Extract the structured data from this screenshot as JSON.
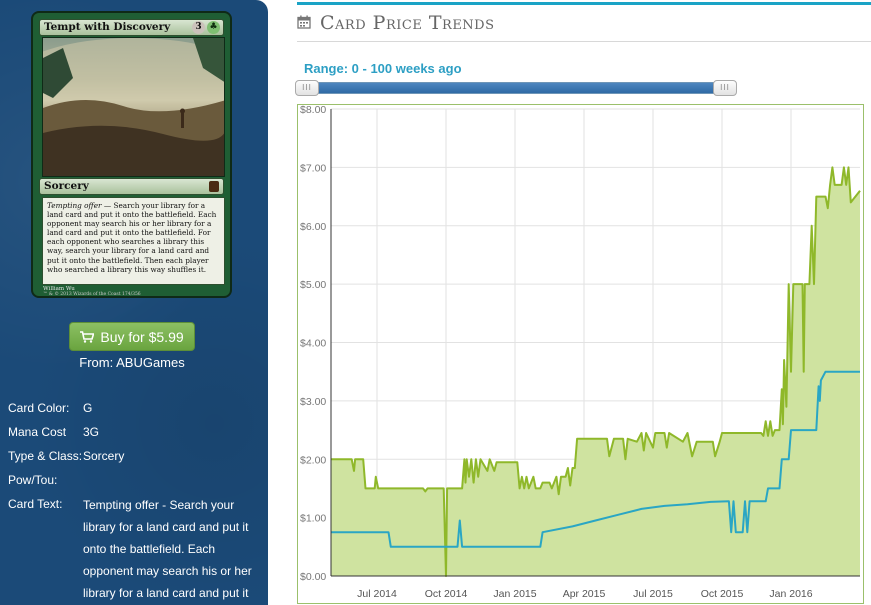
{
  "card": {
    "name": "Tempt with Discovery",
    "mana_symbols": [
      "3",
      "G"
    ],
    "type_line": "Sorcery",
    "rules_text_italic": "Tempting offer",
    "rules_text": " — Search your library for a land card and put it onto the battlefield. Each opponent may search his or her library for a land card and put it onto the battlefield. For each opponent who searches a library this way, search your library for a land card and put it onto the battlefield. Then each player who searched a library this way shuffles it.",
    "artist": "William Wu",
    "copyright": "™ & © 2013 Wizards of the Coast 174/356"
  },
  "buy": {
    "button_label": "Buy for $5.99",
    "from_text": "From: ABUGames",
    "icon": "shopping-cart-icon"
  },
  "info": {
    "rows": [
      {
        "label": "Card Color:",
        "value": "G"
      },
      {
        "label": "Mana Cost",
        "value": "3G"
      },
      {
        "label": "Type & Class:",
        "value": "Sorcery"
      },
      {
        "label": "Pow/Tou:",
        "value": ""
      },
      {
        "label": "Card Text:",
        "value": "Tempting offer - Search your library for a land card and put it onto the battlefield. Each opponent may search his or her library for a land card and put it"
      }
    ]
  },
  "section": {
    "title": "Card Price Trends",
    "icon": "calendar-icon",
    "accent_color": "#1aa3c6"
  },
  "range": {
    "label": "Range: 0 - 100 weeks ago",
    "handle_glyph": "III",
    "min_weeks": 0,
    "max_weeks": 100
  },
  "chart_data": {
    "type": "line",
    "y_min": 0,
    "y_max": 8,
    "y_ticks": [
      "$0.00",
      "$1.00",
      "$2.00",
      "$3.00",
      "$4.00",
      "$5.00",
      "$6.00",
      "$7.00",
      "$8.00"
    ],
    "x_ticks": [
      {
        "label": "Jul 2014",
        "t": 0.5
      },
      {
        "label": "Oct 2014",
        "t": 3.5
      },
      {
        "label": "Jan 2015",
        "t": 6.5
      },
      {
        "label": "Apr 2015",
        "t": 9.5
      },
      {
        "label": "Jul 2015",
        "t": 12.5
      },
      {
        "label": "Oct 2015",
        "t": 15.5
      },
      {
        "label": "Jan 2016",
        "t": 18.5
      }
    ],
    "x_min": -1.5,
    "x_max": 21.5,
    "grid": true,
    "series": [
      {
        "color": "#8fb82a",
        "fill": "#cfe3a0",
        "points": [
          [
            -1.5,
            2.0
          ],
          [
            -0.6,
            2.0
          ],
          [
            -0.5,
            1.8
          ],
          [
            -0.45,
            2.0
          ],
          [
            -0.1,
            2.0
          ],
          [
            0.0,
            1.5
          ],
          [
            0.4,
            1.5
          ],
          [
            0.45,
            1.7
          ],
          [
            0.55,
            1.5
          ],
          [
            2.5,
            1.5
          ],
          [
            2.6,
            1.45
          ],
          [
            2.7,
            1.5
          ],
          [
            3.4,
            1.5
          ],
          [
            3.5,
            0.0
          ],
          [
            3.55,
            1.5
          ],
          [
            4.2,
            1.5
          ],
          [
            4.3,
            2.0
          ],
          [
            4.35,
            1.6
          ],
          [
            4.4,
            2.0
          ],
          [
            4.5,
            1.7
          ],
          [
            4.6,
            2.0
          ],
          [
            4.7,
            1.6
          ],
          [
            4.8,
            2.0
          ],
          [
            4.9,
            1.7
          ],
          [
            5.0,
            2.0
          ],
          [
            5.3,
            1.8
          ],
          [
            5.4,
            2.0
          ],
          [
            5.6,
            1.8
          ],
          [
            5.7,
            1.95
          ],
          [
            6.6,
            1.95
          ],
          [
            6.7,
            1.5
          ],
          [
            6.8,
            1.7
          ],
          [
            6.9,
            1.5
          ],
          [
            7.0,
            1.7
          ],
          [
            7.1,
            1.5
          ],
          [
            7.3,
            1.7
          ],
          [
            7.4,
            1.5
          ],
          [
            7.6,
            1.5
          ],
          [
            7.7,
            1.6
          ],
          [
            8.0,
            1.6
          ],
          [
            8.1,
            1.5
          ],
          [
            8.3,
            1.7
          ],
          [
            8.4,
            1.4
          ],
          [
            8.5,
            1.7
          ],
          [
            8.7,
            1.7
          ],
          [
            8.8,
            1.85
          ],
          [
            8.9,
            1.55
          ],
          [
            9.0,
            1.85
          ],
          [
            9.1,
            1.85
          ],
          [
            9.2,
            2.35
          ],
          [
            10.5,
            2.35
          ],
          [
            10.6,
            2.05
          ],
          [
            10.8,
            2.35
          ],
          [
            11.2,
            2.35
          ],
          [
            11.3,
            2.0
          ],
          [
            11.4,
            2.35
          ],
          [
            11.8,
            2.3
          ],
          [
            12.0,
            2.45
          ],
          [
            12.1,
            2.15
          ],
          [
            12.2,
            2.45
          ],
          [
            12.5,
            2.2
          ],
          [
            12.6,
            2.45
          ],
          [
            13.0,
            2.45
          ],
          [
            13.1,
            2.2
          ],
          [
            13.2,
            2.45
          ],
          [
            13.8,
            2.3
          ],
          [
            14.0,
            2.45
          ],
          [
            14.2,
            2.05
          ],
          [
            14.4,
            2.3
          ],
          [
            15.1,
            2.3
          ],
          [
            15.2,
            2.05
          ],
          [
            15.4,
            2.3
          ],
          [
            15.5,
            2.45
          ],
          [
            17.2,
            2.45
          ],
          [
            17.3,
            2.4
          ],
          [
            17.4,
            2.65
          ],
          [
            17.5,
            2.4
          ],
          [
            17.6,
            2.65
          ],
          [
            17.7,
            2.4
          ],
          [
            17.8,
            2.5
          ],
          [
            18.0,
            2.5
          ],
          [
            18.1,
            3.2
          ],
          [
            18.15,
            2.6
          ],
          [
            18.2,
            3.7
          ],
          [
            18.3,
            2.9
          ],
          [
            18.4,
            5.0
          ],
          [
            18.5,
            3.5
          ],
          [
            18.6,
            5.0
          ],
          [
            19.0,
            5.0
          ],
          [
            19.05,
            3.5
          ],
          [
            19.1,
            5.0
          ],
          [
            19.3,
            5.0
          ],
          [
            19.4,
            6.0
          ],
          [
            19.5,
            5.0
          ],
          [
            19.6,
            6.5
          ],
          [
            20.0,
            6.5
          ],
          [
            20.1,
            6.3
          ],
          [
            20.2,
            6.7
          ],
          [
            20.3,
            7.0
          ],
          [
            20.4,
            6.7
          ],
          [
            20.7,
            6.7
          ],
          [
            20.8,
            7.0
          ],
          [
            20.9,
            6.7
          ],
          [
            21.0,
            7.0
          ],
          [
            21.1,
            6.4
          ],
          [
            21.5,
            6.6
          ]
        ]
      },
      {
        "color": "#2aa6c4",
        "points": [
          [
            -1.5,
            0.75
          ],
          [
            1.0,
            0.75
          ],
          [
            1.1,
            0.5
          ],
          [
            3.6,
            0.5
          ],
          [
            4.0,
            0.5
          ],
          [
            4.1,
            0.95
          ],
          [
            4.2,
            0.5
          ],
          [
            6.0,
            0.5
          ],
          [
            7.6,
            0.5
          ],
          [
            7.7,
            0.75
          ],
          [
            9.0,
            0.85
          ],
          [
            10.0,
            0.95
          ],
          [
            11.0,
            1.05
          ],
          [
            12.0,
            1.15
          ],
          [
            13.0,
            1.2
          ],
          [
            14.0,
            1.23
          ],
          [
            15.0,
            1.27
          ],
          [
            15.8,
            1.28
          ],
          [
            15.9,
            0.75
          ],
          [
            16.0,
            1.28
          ],
          [
            16.1,
            0.75
          ],
          [
            16.4,
            0.75
          ],
          [
            16.5,
            1.28
          ],
          [
            16.6,
            0.75
          ],
          [
            16.7,
            1.28
          ],
          [
            17.0,
            1.28
          ],
          [
            17.4,
            1.28
          ],
          [
            17.5,
            1.5
          ],
          [
            18.0,
            1.5
          ],
          [
            18.1,
            2.0
          ],
          [
            18.4,
            2.0
          ],
          [
            18.5,
            2.5
          ],
          [
            19.6,
            2.5
          ],
          [
            19.7,
            3.25
          ],
          [
            19.75,
            3.0
          ],
          [
            19.8,
            3.35
          ],
          [
            20.0,
            3.5
          ],
          [
            21.5,
            3.5
          ]
        ]
      }
    ]
  }
}
